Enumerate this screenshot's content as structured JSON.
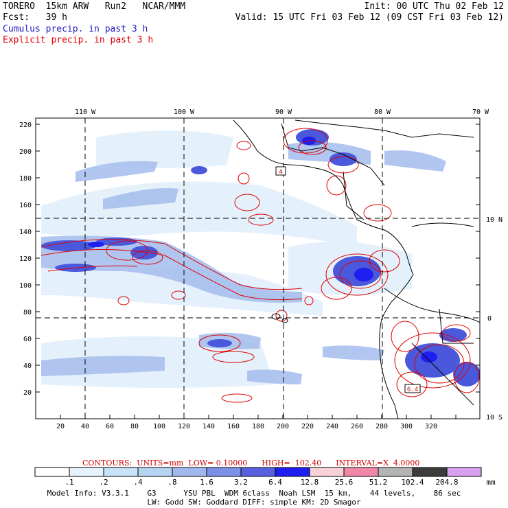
{
  "header": {
    "model": "TORERO  15km ARW   Run2   NCAR/MMM",
    "init": "Init: 00 UTC Thu 02 Feb 12",
    "fcst": "Fcst:   39 h",
    "valid": "Valid: 15 UTC Fri 03 Feb 12 (09 CST Fri 03 Feb 12)",
    "legend_cumulus": "Cumulus precip. in past 3 h",
    "legend_explicit": "Explicit precip. in past 3 h"
  },
  "map": {
    "lon_labels": [
      "110 W",
      "100 W",
      "90 W",
      "80 W",
      "70 W"
    ],
    "lat_labels": [
      "10 N",
      "0",
      "10 S"
    ],
    "y_ticks": [
      "220",
      "200",
      "180",
      "160",
      "140",
      "120",
      "100",
      "80",
      "60",
      "40",
      "20"
    ],
    "x_ticks": [
      "20",
      "40",
      "60",
      "80",
      "100",
      "120",
      "140",
      "160",
      "180",
      "200",
      "220",
      "240",
      "260",
      "280",
      "300",
      "320"
    ],
    "box_labels": [
      "4",
      "6.4"
    ]
  },
  "contours_text": "CONTOURS:  UNITS=mm  LOW= 0.10000      HIGH=  102.40      INTERVAL=X  4.0000",
  "colorbar": {
    "labels": [
      ".1",
      ".2",
      ".4",
      ".8",
      "1.6",
      "3.2",
      "6.4",
      "12.8",
      "25.6",
      "51.2",
      "102.4",
      "204.8"
    ],
    "unit": "mm",
    "colors": [
      "#ffffff",
      "#e6f2fc",
      "#c8e2f8",
      "#b4d4f2",
      "#a0b8ee",
      "#7c90e6",
      "#5860e0",
      "#1e1ef0",
      "#f8d2d6",
      "#f088a8",
      "#b4b4b4",
      "#3c3c3c",
      "#d8a0f0"
    ]
  },
  "footer": {
    "line1": "Model Info: V3.3.1    G3      YSU PBL  WDM 6class  Noah LSM  15 km,    44 levels,    86 sec",
    "line2": "LW: Godd SW: Goddard DIFF: simple KM: 2D Smagor"
  }
}
